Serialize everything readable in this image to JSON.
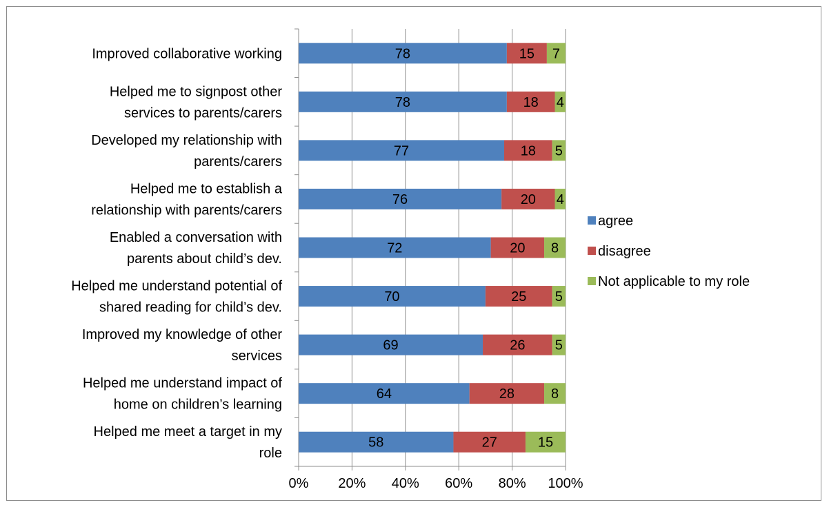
{
  "chart_data": {
    "type": "bar",
    "orientation": "horizontal",
    "stacked": "percent",
    "title": "",
    "xlabel": "",
    "ylabel": "",
    "xlim": [
      0,
      100
    ],
    "x_ticks": [
      "0%",
      "20%",
      "40%",
      "60%",
      "80%",
      "100%"
    ],
    "grid": "vertical",
    "legend_position": "right",
    "categories": [
      [
        "Improved collaborative working"
      ],
      [
        "Helped me to signpost other",
        "services to parents/carers"
      ],
      [
        "Developed my relationship with",
        "parents/carers"
      ],
      [
        "Helped me to establish a",
        "relationship with parents/carers"
      ],
      [
        "Enabled a conversation with",
        "parents about child’s dev."
      ],
      [
        "Helped me understand potential of",
        "shared reading for child’s dev."
      ],
      [
        "Improved my knowledge of other",
        "services"
      ],
      [
        "Helped me understand impact of",
        "home on children’s learning"
      ],
      [
        "Helped me meet a target in my",
        "role"
      ]
    ],
    "series": [
      {
        "name": "agree",
        "color": "#4f81bd",
        "values": [
          78,
          78,
          77,
          76,
          72,
          70,
          69,
          64,
          58
        ]
      },
      {
        "name": "disagree",
        "color": "#c0504d",
        "values": [
          15,
          18,
          18,
          20,
          20,
          25,
          26,
          28,
          27
        ]
      },
      {
        "name": "Not applicable to my role",
        "color": "#9bbb59",
        "values": [
          7,
          4,
          5,
          4,
          8,
          5,
          5,
          8,
          15
        ]
      }
    ]
  }
}
